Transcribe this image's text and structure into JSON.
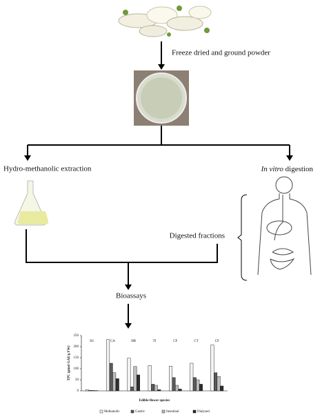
{
  "steps": {
    "powder": "Freeze dried and ground powder",
    "extraction": "Hydro-methanolic extraction",
    "digestion_italic": "In vitro",
    "digestion": "digestion",
    "fractions": "Digested fractions",
    "bioassays": "Bioassays"
  },
  "chart_data": {
    "type": "bar",
    "y_label": "TPC (µmol GAE/g FW)",
    "x_label": "Edible flower species",
    "categories": [
      "SG",
      "CA",
      "HR",
      "TI",
      "CF",
      "CT",
      "CF"
    ],
    "series": [
      {
        "name": "Methanolic",
        "color": "#f2f2f2",
        "values": [
          5,
          232,
          148,
          115,
          112,
          125,
          208
        ]
      },
      {
        "name": "Gastric",
        "color": "#5a5a5a",
        "values": [
          2,
          125,
          18,
          30,
          60,
          60,
          82
        ]
      },
      {
        "name": "Intestinal",
        "color": "#bdbdbd",
        "values": [
          2,
          82,
          110,
          25,
          25,
          50,
          65
        ]
      },
      {
        "name": "Dialysed",
        "color": "#2e2e2e",
        "values": [
          1,
          55,
          72,
          5,
          8,
          30,
          22
        ]
      }
    ],
    "ylim": [
      0,
      250
    ],
    "yticks": [
      0,
      50,
      100,
      150,
      200,
      250
    ]
  }
}
